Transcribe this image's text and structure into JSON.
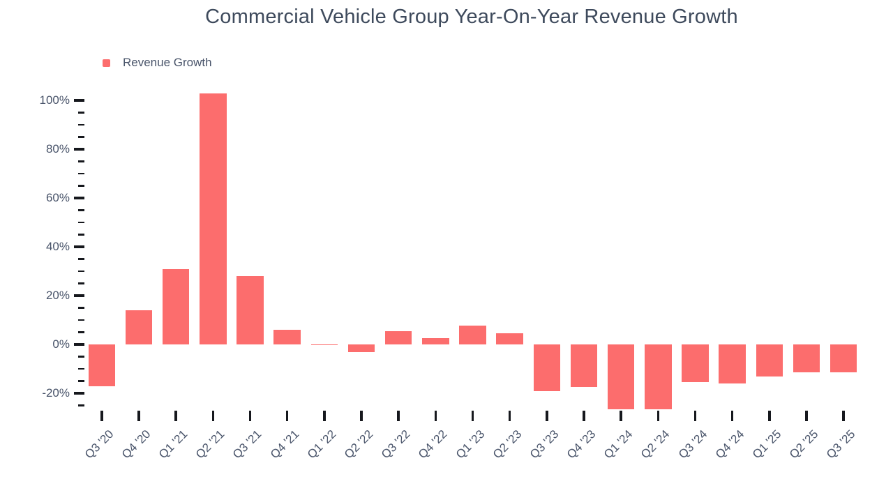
{
  "chart_data": {
    "type": "bar",
    "title": "Commercial Vehicle Group Year-On-Year Revenue Growth",
    "xlabel": "",
    "ylabel": "",
    "grid": false,
    "legend_position": "top-left",
    "categories": [
      "Q3 '20",
      "Q4 '20",
      "Q1 '21",
      "Q2 '21",
      "Q3 '21",
      "Q4 '21",
      "Q1 '22",
      "Q2 '22",
      "Q3 '22",
      "Q4 '22",
      "Q1 '23",
      "Q2 '23",
      "Q3 '23",
      "Q4 '23",
      "Q1 '24",
      "Q2 '24",
      "Q3 '24",
      "Q4 '24",
      "Q1 '25",
      "Q2 '25",
      "Q3 '25"
    ],
    "series": [
      {
        "name": "Revenue Growth",
        "values": [
          -17,
          14,
          31,
          103,
          28,
          6,
          -0.4,
          -3,
          5.3,
          2.5,
          7.7,
          4.7,
          -19,
          -17.5,
          -26.5,
          -26.5,
          -15.5,
          -16,
          -13,
          -11.5,
          -11.5
        ]
      }
    ],
    "value_unit": "%",
    "y_axis": {
      "major_tick_values": [
        100,
        80,
        60,
        40,
        20,
        0,
        -20
      ],
      "major_tick_labels": [
        "100%",
        "80%",
        "60%",
        "40%",
        "20%",
        "0%",
        "-20%"
      ],
      "minor_tick_values": [
        95,
        90,
        85,
        75,
        70,
        65,
        55,
        50,
        45,
        35,
        30,
        25,
        15,
        10,
        5,
        -5,
        -10,
        -15,
        -25
      ],
      "range": [
        -28,
        104
      ]
    },
    "colors": {
      "bar": "#FC6D6D",
      "title_text": "#3E4A5C",
      "axis_text": "#49546A",
      "tick": "#16181D",
      "background": "#FFFFFF"
    }
  }
}
